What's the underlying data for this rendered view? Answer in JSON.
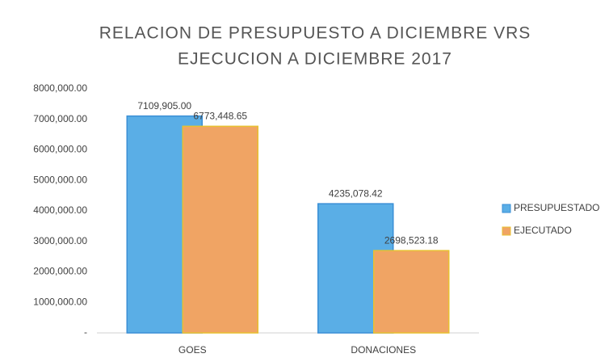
{
  "chart_data": {
    "type": "bar",
    "title": [
      "RELACION DE PRESUPUESTO A DICIEMBRE VRS",
      "EJECUCION A DICIEMBRE 2017"
    ],
    "categories": [
      "GOES",
      "DONACIONES"
    ],
    "series": [
      {
        "name": "PRESUPUESTADO",
        "color": "#5aaee6",
        "values": [
          7109905.0,
          4235078.42
        ],
        "value_labels": [
          "7109,905.00",
          "4235,078.42"
        ]
      },
      {
        "name": "EJECUTADO",
        "color": "#f0a464",
        "values": [
          6773448.65,
          2698523.18
        ],
        "value_labels": [
          "6773,448.65",
          "2698,523.18"
        ]
      }
    ],
    "ylim": [
      0,
      8000000
    ],
    "yticks": [
      {
        "value": 0,
        "label": "-"
      },
      {
        "value": 1000000,
        "label": "1000,000.00"
      },
      {
        "value": 2000000,
        "label": "2000,000.00"
      },
      {
        "value": 3000000,
        "label": "3000,000.00"
      },
      {
        "value": 4000000,
        "label": "4000,000.00"
      },
      {
        "value": 5000000,
        "label": "5000,000.00"
      },
      {
        "value": 6000000,
        "label": "6000,000.00"
      },
      {
        "value": 7000000,
        "label": "7000,000.00"
      },
      {
        "value": 8000000,
        "label": "8000,000.00"
      }
    ],
    "legend": "right"
  }
}
